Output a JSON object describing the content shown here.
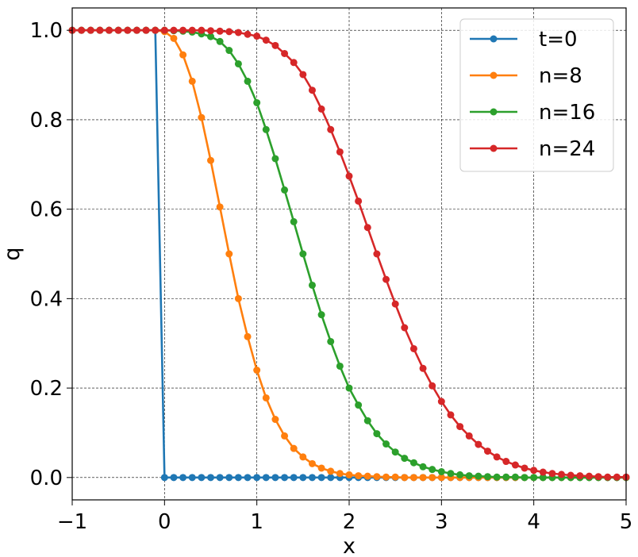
{
  "chart_data": {
    "type": "line",
    "xlabel": "x",
    "ylabel": "q",
    "xlim": [
      -1,
      5
    ],
    "ylim": [
      -0.05,
      1.05
    ],
    "xticks": [
      -1,
      0,
      1,
      2,
      3,
      4,
      5
    ],
    "xtick_labels": [
      "−1",
      "0",
      "1",
      "2",
      "3",
      "4",
      "5"
    ],
    "yticks": [
      0.0,
      0.2,
      0.4,
      0.6,
      0.8,
      1.0
    ],
    "ytick_labels": [
      "0.0",
      "0.2",
      "0.4",
      "0.6",
      "0.8",
      "1.0"
    ],
    "grid": true,
    "legend_position": "top-right",
    "x": [
      -1.0,
      -0.9,
      -0.8,
      -0.7,
      -0.6,
      -0.5,
      -0.4,
      -0.3,
      -0.2,
      -0.1,
      0.0,
      0.1,
      0.2,
      0.3,
      0.4,
      0.5,
      0.6,
      0.7,
      0.8,
      0.9,
      1.0,
      1.1,
      1.2,
      1.3,
      1.4,
      1.5,
      1.6,
      1.7,
      1.8,
      1.9,
      2.0,
      2.1,
      2.2,
      2.3,
      2.4,
      2.5,
      2.6,
      2.7,
      2.8,
      2.9,
      3.0,
      3.1,
      3.2,
      3.3,
      3.4,
      3.5,
      3.6,
      3.7,
      3.8,
      3.9,
      4.0,
      4.1,
      4.2,
      4.3,
      4.4,
      4.5,
      4.6,
      4.7,
      4.8,
      4.9,
      5.0
    ],
    "series": [
      {
        "name": "t=0",
        "color": "#1f77b4",
        "values": [
          1,
          1,
          1,
          1,
          1,
          1,
          1,
          1,
          1,
          1,
          0,
          0,
          0,
          0,
          0,
          0,
          0,
          0,
          0,
          0,
          0,
          0,
          0,
          0,
          0,
          0,
          0,
          0,
          0,
          0,
          0,
          0,
          0,
          0,
          0,
          0,
          0,
          0,
          0,
          0,
          0,
          0,
          0,
          0,
          0,
          0,
          0,
          0,
          0,
          0,
          0,
          0,
          0,
          0,
          0,
          0,
          0,
          0,
          0,
          0,
          0
        ]
      },
      {
        "name": "n=8",
        "color": "#ff7f0e",
        "values": [
          1,
          1,
          1,
          1,
          1,
          1,
          1,
          1,
          1,
          1,
          0.997,
          0.982,
          0.945,
          0.886,
          0.805,
          0.709,
          0.605,
          0.5,
          0.4,
          0.315,
          0.24,
          0.178,
          0.13,
          0.093,
          0.065,
          0.046,
          0.031,
          0.021,
          0.014,
          0.009,
          0.006,
          0.004,
          0.003,
          0.002,
          0.001,
          0.001,
          0,
          0,
          0,
          0,
          0,
          0,
          0,
          0,
          0,
          0,
          0,
          0,
          0,
          0,
          0,
          0,
          0,
          0,
          0,
          0,
          0,
          0,
          0,
          0,
          0
        ]
      },
      {
        "name": "n=16",
        "color": "#2ca02c",
        "values": [
          1,
          1,
          1,
          1,
          1,
          1,
          1,
          1,
          1,
          1,
          1,
          0.999,
          0.998,
          0.996,
          0.992,
          0.986,
          0.975,
          0.955,
          0.925,
          0.886,
          0.838,
          0.778,
          0.713,
          0.643,
          0.572,
          0.5,
          0.43,
          0.364,
          0.304,
          0.249,
          0.2,
          0.162,
          0.127,
          0.098,
          0.075,
          0.057,
          0.043,
          0.033,
          0.024,
          0.018,
          0.013,
          0.009,
          0.006,
          0.004,
          0.003,
          0.002,
          0.001,
          0.001,
          0.001,
          0,
          0,
          0,
          0,
          0,
          0,
          0,
          0,
          0,
          0,
          0,
          0
        ]
      },
      {
        "name": "n=24",
        "color": "#d62728",
        "values": [
          1,
          1,
          1,
          1,
          1,
          1,
          1,
          1,
          1,
          1,
          1,
          1,
          1,
          1,
          1,
          0.999,
          0.998,
          0.997,
          0.995,
          0.991,
          0.987,
          0.978,
          0.966,
          0.948,
          0.928,
          0.901,
          0.866,
          0.824,
          0.778,
          0.728,
          0.674,
          0.618,
          0.559,
          0.5,
          0.443,
          0.388,
          0.335,
          0.288,
          0.244,
          0.205,
          0.17,
          0.14,
          0.114,
          0.093,
          0.074,
          0.059,
          0.046,
          0.036,
          0.028,
          0.021,
          0.016,
          0.012,
          0.009,
          0.007,
          0.005,
          0.004,
          0.003,
          0.002,
          0.001,
          0.001,
          0.001
        ]
      }
    ]
  }
}
